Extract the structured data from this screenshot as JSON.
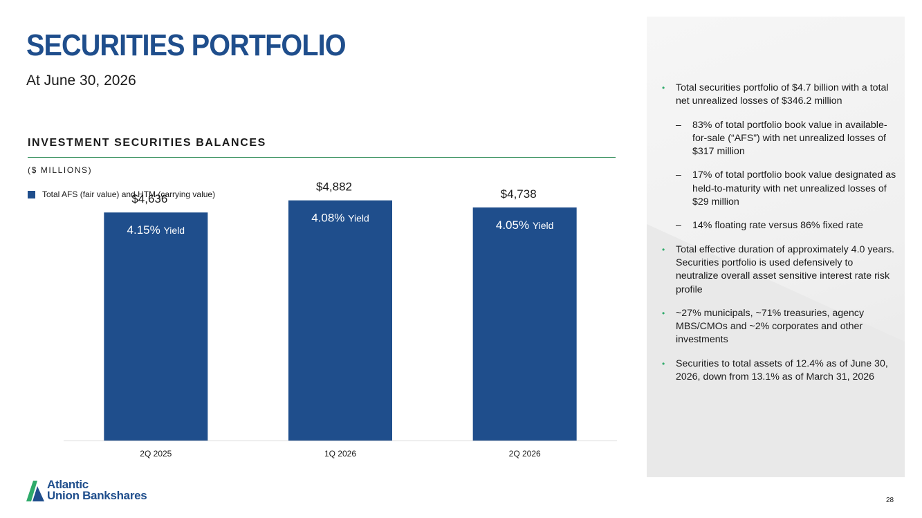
{
  "header": {
    "title": "SECURITIES PORTFOLIO",
    "subtitle": "At June 30, 2026"
  },
  "section": {
    "title": "INVESTMENT SECURITIES BALANCES",
    "units": "($ MILLIONS)"
  },
  "chart_data": {
    "type": "bar",
    "categories": [
      "2Q 2025",
      "1Q 2026",
      "2Q 2026"
    ],
    "series": [
      {
        "name": "Total AFS (fair value) and HTM (carrying value)",
        "values": [
          4636,
          4882,
          4738
        ],
        "value_labels": [
          "$4,636",
          "$4,882",
          "$4,738"
        ],
        "yields": [
          "4.15%",
          "4.08%",
          "4.05%"
        ],
        "color": "#1f4e8c"
      }
    ],
    "yield_suffix": "Yield",
    "ylim": [
      0,
      5300
    ],
    "legend_position": "top-left",
    "grid": false
  },
  "panel": {
    "items": [
      {
        "level": 1,
        "text": "Total securities portfolio of $4.7 billion with a total net unrealized losses of $346.2 million"
      },
      {
        "level": 2,
        "text": "83% of total portfolio book value in available-for-sale (“AFS”) with net unrealized losses of $317 million"
      },
      {
        "level": 2,
        "text": "17% of total portfolio book value designated as held-to-maturity with net unrealized losses of $29 million"
      },
      {
        "level": 2,
        "text": "14% floating rate versus 86% fixed rate"
      },
      {
        "level": 1,
        "text": "Total effective duration of approximately 4.0 years. Securities portfolio is used defensively to neutralize overall asset sensitive interest rate risk profile"
      },
      {
        "level": 1,
        "text": "~27% municipals, ~71% treasuries, agency MBS/CMOs and ~2% corporates and other investments"
      },
      {
        "level": 1,
        "text": "Securities to total assets of 12.4% as of June 30, 2026, down from 13.1% as of March 31, 2026"
      }
    ],
    "bullet_glyph": "•",
    "dash_glyph": "–"
  },
  "footer": {
    "logo_line1": "Atlantic",
    "logo_line2": "Union Bankshares",
    "page_number": "28"
  },
  "colors": {
    "brand_blue": "#1f4e8c",
    "accent_green": "#2e8b57",
    "bullet_green": "#2eaa6a"
  }
}
